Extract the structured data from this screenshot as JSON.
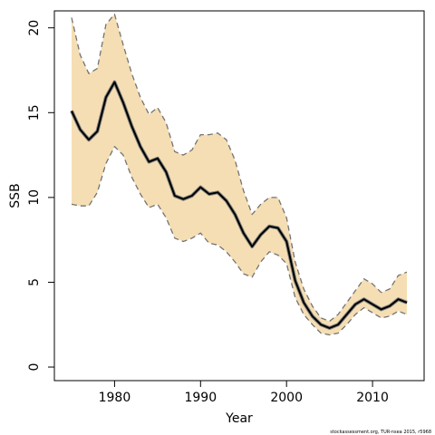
{
  "chart_data": {
    "type": "line",
    "xlabel": "Year",
    "ylabel": "SSB",
    "xlim": [
      1973,
      2016
    ],
    "ylim": [
      -0.8,
      21
    ],
    "xticks": [
      1980,
      1990,
      2000,
      2010
    ],
    "yticks": [
      0,
      5,
      10,
      15,
      20
    ],
    "x": [
      1975,
      1976,
      1977,
      1978,
      1979,
      1980,
      1981,
      1982,
      1983,
      1984,
      1985,
      1986,
      1987,
      1988,
      1989,
      1990,
      1991,
      1992,
      1993,
      1994,
      1995,
      1996,
      1997,
      1998,
      1999,
      2000,
      2001,
      2002,
      2003,
      2004,
      2005,
      2006,
      2007,
      2008,
      2009,
      2010,
      2011,
      2012,
      2013,
      2014
    ],
    "series": [
      {
        "name": "",
        "role": "estimate",
        "values": [
          15.1,
          14.0,
          13.4,
          13.9,
          15.9,
          16.8,
          15.6,
          14.2,
          13.0,
          12.1,
          12.3,
          11.5,
          10.1,
          9.9,
          10.1,
          10.6,
          10.2,
          10.3,
          9.8,
          9.0,
          7.9,
          7.1,
          7.8,
          8.3,
          8.2,
          7.4,
          5.1,
          3.8,
          3.0,
          2.5,
          2.3,
          2.5,
          3.1,
          3.7,
          4.0,
          3.7,
          3.4,
          3.6,
          4.0,
          3.8
        ]
      },
      {
        "name": "",
        "role": "lower-bound",
        "values": [
          9.6,
          9.5,
          9.5,
          10.3,
          12.0,
          13.0,
          12.5,
          11.2,
          10.2,
          9.4,
          9.6,
          8.8,
          7.6,
          7.4,
          7.6,
          7.9,
          7.3,
          7.2,
          6.8,
          6.2,
          5.5,
          5.3,
          6.2,
          6.8,
          6.6,
          6.1,
          4.1,
          3.1,
          2.5,
          2.0,
          1.9,
          2.0,
          2.5,
          3.1,
          3.5,
          3.2,
          2.9,
          3.0,
          3.3,
          3.1
        ]
      },
      {
        "name": "",
        "role": "upper-bound",
        "values": [
          20.6,
          18.4,
          17.3,
          17.6,
          20.2,
          20.8,
          19.0,
          17.3,
          15.9,
          14.9,
          15.3,
          14.4,
          12.7,
          12.5,
          12.8,
          13.7,
          13.7,
          13.8,
          13.4,
          12.2,
          10.4,
          9.0,
          9.6,
          10.0,
          10.0,
          8.8,
          6.2,
          4.6,
          3.6,
          2.9,
          2.7,
          3.1,
          3.8,
          4.5,
          5.2,
          4.9,
          4.4,
          4.6,
          5.4,
          5.6
        ]
      }
    ],
    "colors": {
      "band": "#f5deb3",
      "estimate": "#000000",
      "estimate_outline": "#808080",
      "bounds": "#737373",
      "axis": "#000000"
    },
    "grid": false,
    "footnote": "stockassessment.org, TUR-nsea 2015, r5968"
  }
}
